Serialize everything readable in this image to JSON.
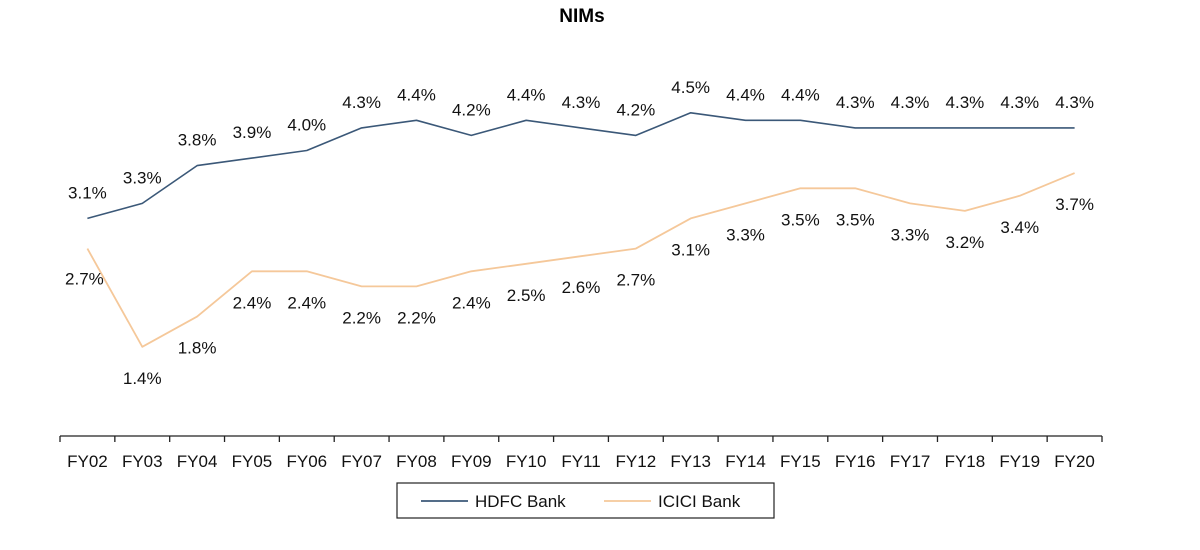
{
  "chart_data": {
    "type": "line",
    "title": "NIMs",
    "xlabel": "",
    "ylabel": "",
    "categories": [
      "FY02",
      "FY03",
      "FY04",
      "FY05",
      "FY06",
      "FY07",
      "FY08",
      "FY09",
      "FY10",
      "FY11",
      "FY12",
      "FY13",
      "FY14",
      "FY15",
      "FY16",
      "FY17",
      "FY18",
      "FY19",
      "FY20"
    ],
    "ylim": [
      0,
      5.0
    ],
    "grid": false,
    "legend_position": "bottom",
    "series": [
      {
        "name": "HDFC Bank",
        "color": "#3b5878",
        "values": [
          3.1,
          3.3,
          3.8,
          3.9,
          4.0,
          4.3,
          4.4,
          4.2,
          4.4,
          4.3,
          4.2,
          4.5,
          4.4,
          4.4,
          4.3,
          4.3,
          4.3,
          4.3,
          4.3
        ],
        "labels": [
          "3.1%",
          "3.3%",
          "3.8%",
          "3.9%",
          "4.0%",
          "4.3%",
          "4.4%",
          "4.2%",
          "4.4%",
          "4.3%",
          "4.2%",
          "4.5%",
          "4.4%",
          "4.4%",
          "4.3%",
          "4.3%",
          "4.3%",
          "4.3%",
          "4.3%"
        ]
      },
      {
        "name": "ICICI Bank",
        "color": "#f5c89a",
        "values": [
          2.7,
          1.4,
          1.8,
          2.4,
          2.4,
          2.2,
          2.2,
          2.4,
          2.5,
          2.6,
          2.7,
          3.1,
          3.3,
          3.5,
          3.5,
          3.3,
          3.2,
          3.4,
          3.7
        ],
        "labels": [
          "2.7%",
          "1.4%",
          "1.8%",
          "2.4%",
          "2.4%",
          "2.2%",
          "2.2%",
          "2.4%",
          "2.5%",
          "2.6%",
          "2.7%",
          "3.1%",
          "3.3%",
          "3.5%",
          "3.5%",
          "3.3%",
          "3.2%",
          "3.4%",
          "3.7%"
        ]
      }
    ]
  }
}
